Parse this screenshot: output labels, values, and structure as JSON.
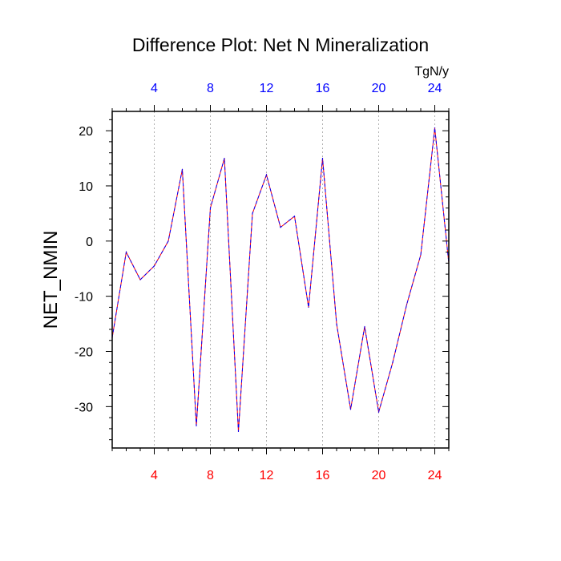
{
  "chart_data": {
    "type": "line",
    "title": "Difference Plot: Net N Mineralization",
    "ylabel": "NET_NMIN",
    "xlabel": "",
    "units_label": "TgN/y",
    "xlim": [
      1,
      25
    ],
    "ylim": [
      -37.5,
      23.5
    ],
    "x_ticks": [
      4,
      8,
      12,
      16,
      20,
      24
    ],
    "x_tick_labels": [
      "4",
      "8",
      "12",
      "16",
      "20",
      "24"
    ],
    "y_ticks": [
      20,
      10,
      0,
      -10,
      -20,
      -30
    ],
    "y_tick_labels": [
      "20",
      "10",
      "0",
      "-10",
      "-20",
      "-30"
    ],
    "grid": "vertical dotted",
    "colors": {
      "top_ticks": "#0000ff",
      "bottom_ticks": "#ff0000",
      "series_a": "#ff0000",
      "series_b": "#0000ff"
    },
    "series": [
      {
        "name": "series_red",
        "x": [
          1,
          2,
          3,
          4,
          5,
          6,
          7,
          8,
          9,
          10,
          11,
          12,
          13,
          14,
          15,
          16,
          17,
          18,
          19,
          20,
          21,
          22,
          23,
          24,
          25
        ],
        "values": [
          -17.5,
          -2,
          -7,
          -4.5,
          0,
          13,
          -33.5,
          6,
          15,
          -34.5,
          5,
          12,
          2.5,
          4.5,
          -12,
          15,
          -15,
          -30.5,
          -15.5,
          -31,
          -22,
          -11.5,
          -2.5,
          20.5,
          -4
        ]
      },
      {
        "name": "series_blue",
        "x": [
          1,
          2,
          3,
          4,
          5,
          6,
          7,
          8,
          9,
          10,
          11,
          12,
          13,
          14,
          15,
          16,
          17,
          18,
          19,
          20,
          21,
          22,
          23,
          24,
          25
        ],
        "values": [
          -17.5,
          -2,
          -7,
          -4.5,
          0,
          13,
          -33.5,
          6,
          15,
          -34.5,
          5,
          12,
          2.5,
          4.5,
          -12,
          15,
          -15,
          -30.5,
          -15.5,
          -31,
          -22,
          -11.5,
          -2.5,
          20.5,
          -4
        ]
      }
    ]
  }
}
